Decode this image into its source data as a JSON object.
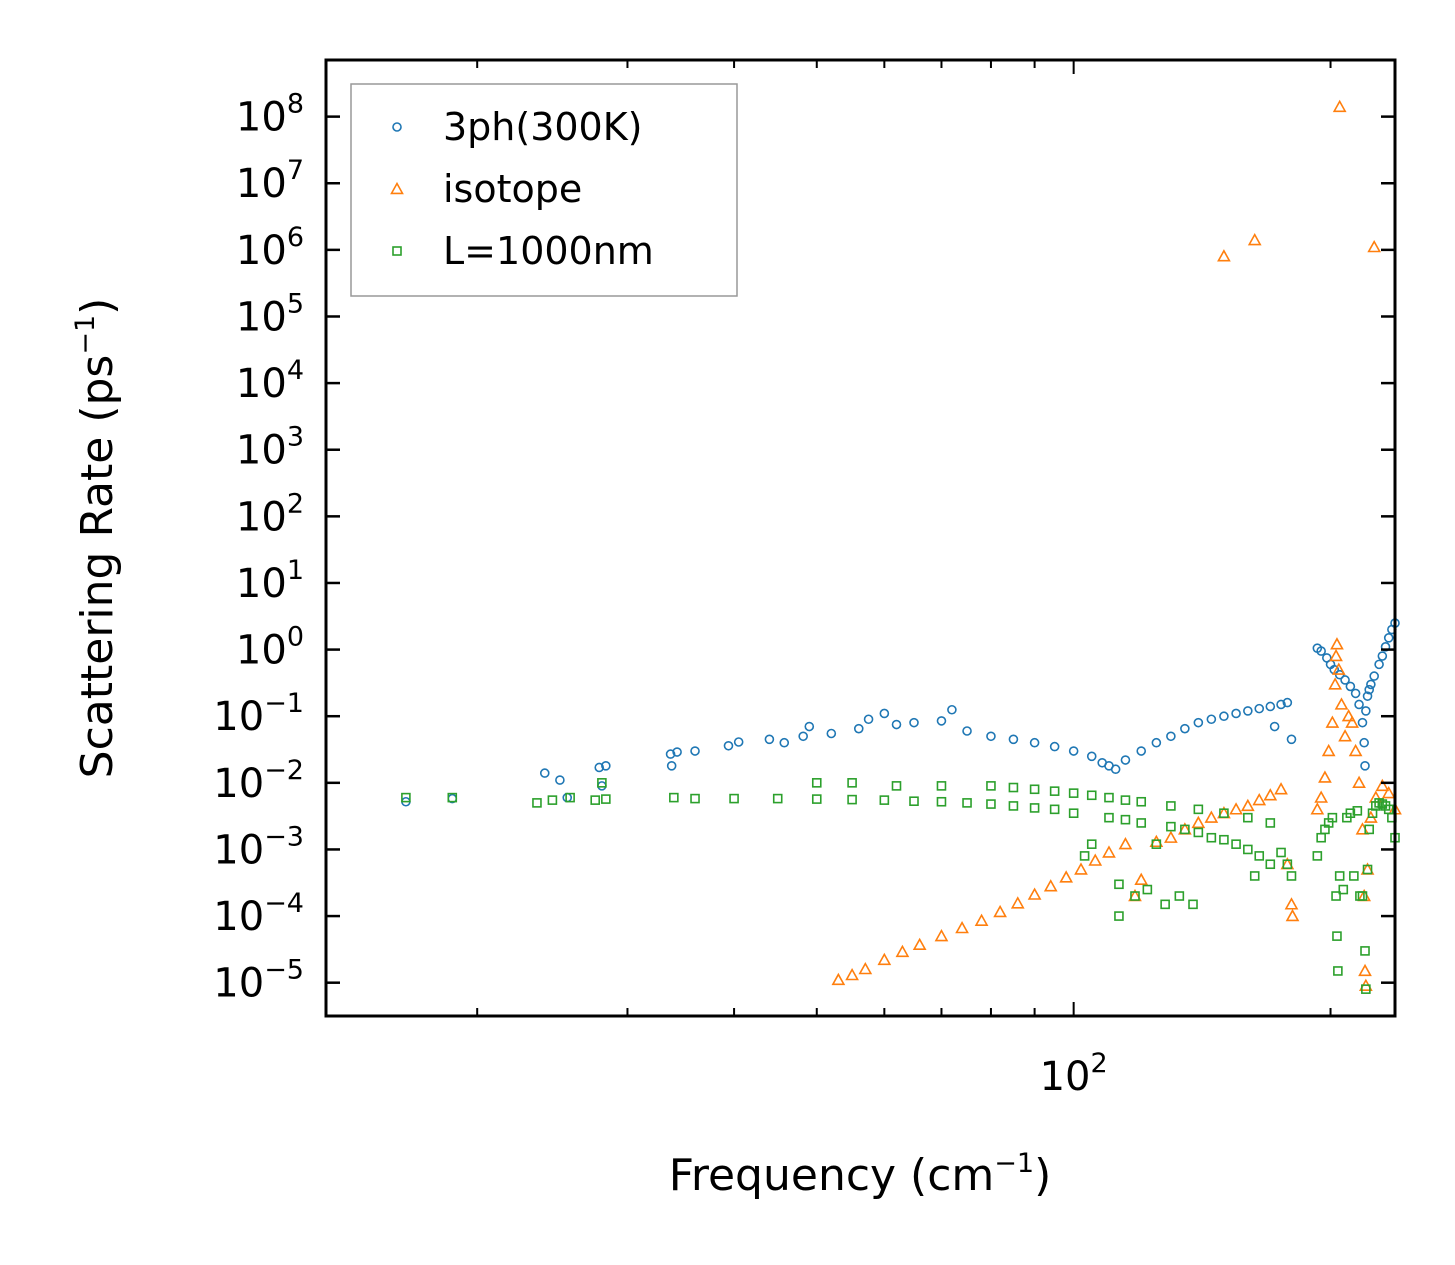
{
  "chart_data": {
    "type": "scatter",
    "title": "",
    "xlabel": "Frequency (cm",
    "xlabel_exponent": "−1",
    "xlabel_close": ")",
    "ylabel": "Scattering Rate (ps",
    "ylabel_exponent": "−1",
    "ylabel_close": ")",
    "xscale": "log",
    "yscale": "log",
    "xlim": [
      13.3,
      238
    ],
    "ylim_log10": [
      -5.5,
      8.85
    ],
    "x_tick_labels": [
      {
        "base": "10",
        "exp": "2",
        "value": 100
      }
    ],
    "y_tick_labels": [
      {
        "base": "10",
        "exp": "8",
        "value": 8
      },
      {
        "base": "10",
        "exp": "7",
        "value": 7
      },
      {
        "base": "10",
        "exp": "6",
        "value": 6
      },
      {
        "base": "10",
        "exp": "5",
        "value": 5
      },
      {
        "base": "10",
        "exp": "4",
        "value": 4
      },
      {
        "base": "10",
        "exp": "3",
        "value": 3
      },
      {
        "base": "10",
        "exp": "2",
        "value": 2
      },
      {
        "base": "10",
        "exp": "1",
        "value": 1
      },
      {
        "base": "10",
        "exp": "0",
        "value": 0
      },
      {
        "base": "10",
        "exp": "−1",
        "value": -1
      },
      {
        "base": "10",
        "exp": "−2",
        "value": -2
      },
      {
        "base": "10",
        "exp": "−3",
        "value": -3
      },
      {
        "base": "10",
        "exp": "−4",
        "value": -4
      },
      {
        "base": "10",
        "exp": "−5",
        "value": -5
      }
    ],
    "legend_position": "top-left",
    "series": [
      {
        "name": "3ph(300K)",
        "marker": "circle",
        "color": "#1f77b4",
        "points": [
          [
            16.5,
            0.0052
          ],
          [
            18.7,
            0.0058
          ],
          [
            24.0,
            0.014
          ],
          [
            25.0,
            0.011
          ],
          [
            25.5,
            0.006
          ],
          [
            27.8,
            0.017
          ],
          [
            28.3,
            0.018
          ],
          [
            28.0,
            0.009
          ],
          [
            33.7,
            0.027
          ],
          [
            34.3,
            0.029
          ],
          [
            33.8,
            0.018
          ],
          [
            36.0,
            0.03
          ],
          [
            39.4,
            0.036
          ],
          [
            40.5,
            0.041
          ],
          [
            44.0,
            0.045
          ],
          [
            45.8,
            0.04
          ],
          [
            48.2,
            0.05
          ],
          [
            49.0,
            0.07
          ],
          [
            52.0,
            0.055
          ],
          [
            56.0,
            0.065
          ],
          [
            57.5,
            0.09
          ],
          [
            60.0,
            0.11
          ],
          [
            62.0,
            0.075
          ],
          [
            65.0,
            0.08
          ],
          [
            70.0,
            0.085
          ],
          [
            72.0,
            0.125
          ],
          [
            75.0,
            0.06
          ],
          [
            80.0,
            0.05
          ],
          [
            85.0,
            0.045
          ],
          [
            90.0,
            0.04
          ],
          [
            95.0,
            0.035
          ],
          [
            100.0,
            0.03
          ],
          [
            105.0,
            0.025
          ],
          [
            108.0,
            0.02
          ],
          [
            110.0,
            0.018
          ],
          [
            112.0,
            0.016
          ],
          [
            115.0,
            0.022
          ],
          [
            120.0,
            0.03
          ],
          [
            125.0,
            0.04
          ],
          [
            130.0,
            0.05
          ],
          [
            135.0,
            0.065
          ],
          [
            140.0,
            0.08
          ],
          [
            145.0,
            0.09
          ],
          [
            150.0,
            0.1
          ],
          [
            155.0,
            0.11
          ],
          [
            160.0,
            0.12
          ],
          [
            165.0,
            0.13
          ],
          [
            170.0,
            0.14
          ],
          [
            175.0,
            0.15
          ],
          [
            178.0,
            0.16
          ],
          [
            180.0,
            0.045
          ],
          [
            172.0,
            0.07
          ],
          [
            193.0,
            1.05
          ],
          [
            195.0,
            0.95
          ],
          [
            198.0,
            0.75
          ],
          [
            200.0,
            0.6
          ],
          [
            202.0,
            0.5
          ],
          [
            205.0,
            0.42
          ],
          [
            208.0,
            0.35
          ],
          [
            211.0,
            0.28
          ],
          [
            214.0,
            0.22
          ],
          [
            216.0,
            0.15
          ],
          [
            218.0,
            0.08
          ],
          [
            219.0,
            0.04
          ],
          [
            219.5,
            0.018
          ],
          [
            220.0,
            0.12
          ],
          [
            221.0,
            0.2
          ],
          [
            222.0,
            0.25
          ],
          [
            223.0,
            0.3
          ],
          [
            225.0,
            0.4
          ],
          [
            228.0,
            0.6
          ],
          [
            230.0,
            0.8
          ],
          [
            232.0,
            1.1
          ],
          [
            234.0,
            1.5
          ],
          [
            236.0,
            2.0
          ],
          [
            238.0,
            2.5
          ],
          [
            239.5,
            3.2
          ]
        ]
      },
      {
        "name": "isotope",
        "marker": "triangle",
        "color": "#ff7f0e",
        "points": [
          [
            53.0,
            1.1e-05
          ],
          [
            55.0,
            1.3e-05
          ],
          [
            57.0,
            1.6e-05
          ],
          [
            60.0,
            2.2e-05
          ],
          [
            63.0,
            2.9e-05
          ],
          [
            66.0,
            3.7e-05
          ],
          [
            70.0,
            5e-05
          ],
          [
            74.0,
            6.6e-05
          ],
          [
            78.0,
            8.5e-05
          ],
          [
            82.0,
            0.000115
          ],
          [
            86.0,
            0.000155
          ],
          [
            90.0,
            0.00021
          ],
          [
            94.0,
            0.00028
          ],
          [
            98.0,
            0.00038
          ],
          [
            102.0,
            0.0005
          ],
          [
            106.0,
            0.00068
          ],
          [
            110.0,
            0.0009
          ],
          [
            115.0,
            0.0012
          ],
          [
            118.0,
            0.0002
          ],
          [
            120.0,
            0.00035
          ],
          [
            125.0,
            0.0013
          ],
          [
            130.0,
            0.0015
          ],
          [
            135.0,
            0.002
          ],
          [
            140.0,
            0.0025
          ],
          [
            145.0,
            0.003
          ],
          [
            150.0,
            0.0035
          ],
          [
            155.0,
            0.004
          ],
          [
            160.0,
            0.0045
          ],
          [
            165.0,
            0.0055
          ],
          [
            170.0,
            0.0065
          ],
          [
            175.0,
            0.008
          ],
          [
            178.0,
            0.0006
          ],
          [
            180.0,
            0.00015
          ],
          [
            180.5,
            0.0001
          ],
          [
            193.0,
            0.004
          ],
          [
            195.0,
            0.006
          ],
          [
            197.0,
            0.012
          ],
          [
            199.0,
            0.03
          ],
          [
            201.0,
            0.08
          ],
          [
            202.5,
            0.3
          ],
          [
            203.0,
            0.8
          ],
          [
            203.5,
            1.2
          ],
          [
            204.5,
            0.5
          ],
          [
            206.0,
            0.15
          ],
          [
            208.0,
            0.05
          ],
          [
            210.0,
            0.1
          ],
          [
            212.0,
            0.08
          ],
          [
            214.0,
            0.03
          ],
          [
            216.0,
            0.01
          ],
          [
            218.0,
            0.002
          ],
          [
            219.0,
            0.0002
          ],
          [
            219.5,
            1.5e-05
          ],
          [
            220.0,
            9e-06
          ],
          [
            221.0,
            0.0005
          ],
          [
            223.0,
            0.003
          ],
          [
            226.0,
            0.006
          ],
          [
            230.0,
            0.009
          ],
          [
            234.0,
            0.007
          ],
          [
            238.0,
            0.004
          ],
          [
            239.5,
            0.0008
          ],
          [
            150.0,
            800000.0
          ],
          [
            163.0,
            1400000.0
          ],
          [
            205.0,
            140000000.0
          ],
          [
            225.0,
            1100000.0
          ]
        ]
      },
      {
        "name": "L=1000nm",
        "marker": "square",
        "color": "#2ca02c",
        "points": [
          [
            16.5,
            0.006
          ],
          [
            18.7,
            0.006
          ],
          [
            23.5,
            0.005
          ],
          [
            24.5,
            0.0055
          ],
          [
            27.5,
            0.0055
          ],
          [
            28.3,
            0.0057
          ],
          [
            28.0,
            0.01
          ],
          [
            25.7,
            0.006
          ],
          [
            34.0,
            0.006
          ],
          [
            36.0,
            0.0058
          ],
          [
            40.0,
            0.0058
          ],
          [
            45.0,
            0.0058
          ],
          [
            50.0,
            0.0057
          ],
          [
            50.0,
            0.01
          ],
          [
            55.0,
            0.0056
          ],
          [
            55.0,
            0.01
          ],
          [
            60.0,
            0.0055
          ],
          [
            62.0,
            0.009
          ],
          [
            65.0,
            0.0053
          ],
          [
            70.0,
            0.0052
          ],
          [
            70.0,
            0.009
          ],
          [
            75.0,
            0.005
          ],
          [
            80.0,
            0.0048
          ],
          [
            85.0,
            0.0045
          ],
          [
            90.0,
            0.0042
          ],
          [
            95.0,
            0.004
          ],
          [
            100.0,
            0.0035
          ],
          [
            103.0,
            0.0008
          ],
          [
            105.0,
            0.0012
          ],
          [
            110.0,
            0.003
          ],
          [
            113.0,
            0.0003
          ],
          [
            113.0,
            0.0001
          ],
          [
            115.0,
            0.0028
          ],
          [
            118.0,
            0.0002
          ],
          [
            120.0,
            0.0025
          ],
          [
            122.0,
            0.00025
          ],
          [
            125.0,
            0.0012
          ],
          [
            128.0,
            0.00015
          ],
          [
            130.0,
            0.0022
          ],
          [
            133.0,
            0.0002
          ],
          [
            135.0,
            0.002
          ],
          [
            138.0,
            0.00015
          ],
          [
            140.0,
            0.0018
          ],
          [
            145.0,
            0.0015
          ],
          [
            150.0,
            0.0014
          ],
          [
            155.0,
            0.0012
          ],
          [
            160.0,
            0.001
          ],
          [
            163.0,
            0.0004
          ],
          [
            165.0,
            0.0008
          ],
          [
            170.0,
            0.0006
          ],
          [
            175.0,
            0.0009
          ],
          [
            178.0,
            0.0006
          ],
          [
            180.0,
            0.0004
          ],
          [
            80.0,
            0.009
          ],
          [
            85.0,
            0.0085
          ],
          [
            90.0,
            0.008
          ],
          [
            95.0,
            0.0075
          ],
          [
            100.0,
            0.007
          ],
          [
            105.0,
            0.0065
          ],
          [
            110.0,
            0.006
          ],
          [
            115.0,
            0.0055
          ],
          [
            120.0,
            0.0052
          ],
          [
            130.0,
            0.0045
          ],
          [
            140.0,
            0.004
          ],
          [
            150.0,
            0.0035
          ],
          [
            160.0,
            0.003
          ],
          [
            170.0,
            0.0025
          ],
          [
            193.0,
            0.0008
          ],
          [
            195.0,
            0.0015
          ],
          [
            197.0,
            0.002
          ],
          [
            199.0,
            0.0025
          ],
          [
            201.0,
            0.003
          ],
          [
            203.0,
            0.0002
          ],
          [
            203.5,
            5e-05
          ],
          [
            204.0,
            1.5e-05
          ],
          [
            205.0,
            0.0004
          ],
          [
            207.0,
            0.00025
          ],
          [
            209.0,
            0.003
          ],
          [
            211.0,
            0.0035
          ],
          [
            213.0,
            0.0004
          ],
          [
            215.0,
            0.0038
          ],
          [
            216.5,
            0.0002
          ],
          [
            218.0,
            0.0002
          ],
          [
            219.5,
            3e-05
          ],
          [
            220.0,
            8e-06
          ],
          [
            221.0,
            0.0005
          ],
          [
            222.0,
            0.002
          ],
          [
            224.0,
            0.0035
          ],
          [
            226.0,
            0.0045
          ],
          [
            228.0,
            0.005
          ],
          [
            230.0,
            0.0048
          ],
          [
            232.0,
            0.0045
          ],
          [
            234.0,
            0.004
          ],
          [
            236.0,
            0.003
          ],
          [
            238.0,
            0.0015
          ],
          [
            239.5,
            0.00075
          ]
        ]
      }
    ]
  }
}
